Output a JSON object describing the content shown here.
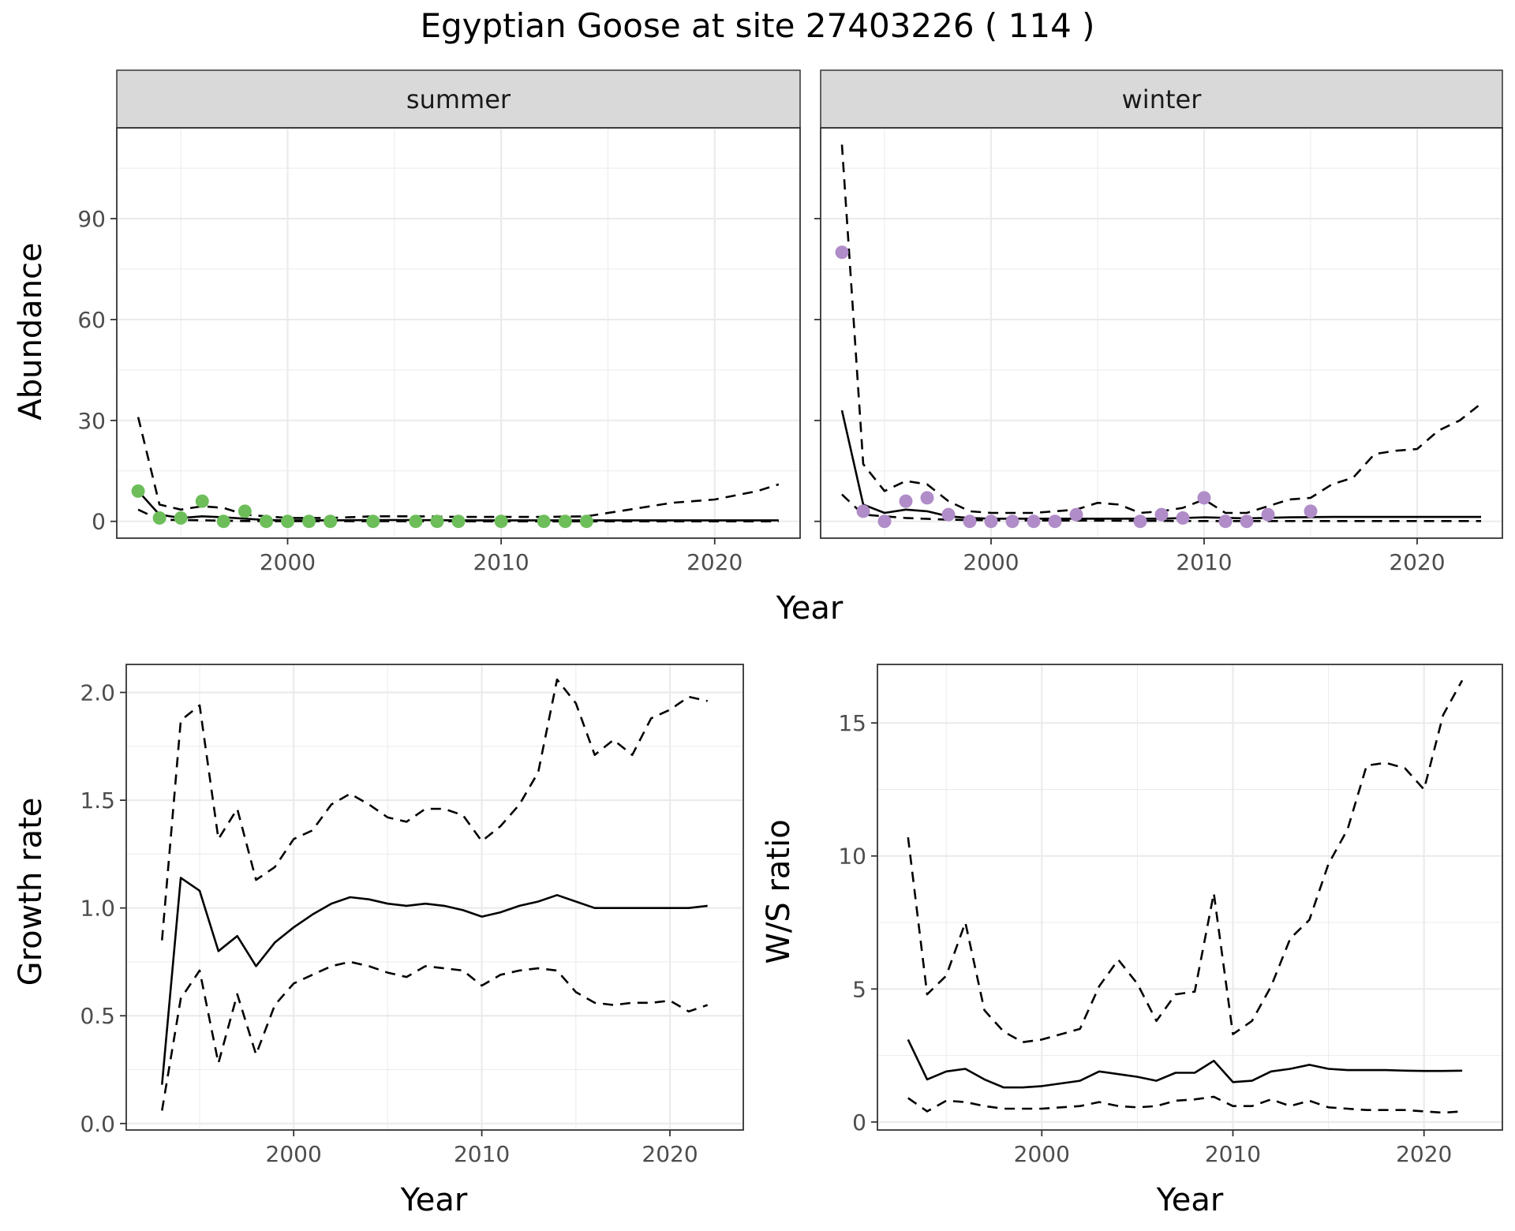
{
  "figure_title": "Egyptian Goose at site 27403226 ( 114 )",
  "colors": {
    "summer_points": "#6dbe5a",
    "winter_points": "#b08cc8",
    "strip_fill": "#d9d9d9",
    "grid": "#ebebeb",
    "line": "#000000"
  },
  "chart_data": [
    {
      "type": "line",
      "title": "Egyptian Goose at site 27403226 ( 114 )",
      "facet_labels": [
        "summer",
        "winter"
      ],
      "xlabel": "Year",
      "ylabel": "Abundance",
      "xlim": [
        1992,
        2024
      ],
      "ylim": [
        -5,
        117
      ],
      "x_ticks": [
        2000,
        2010,
        2020
      ],
      "y_ticks": [
        0,
        30,
        60,
        90
      ],
      "grid": true,
      "facets": [
        {
          "name": "summer",
          "points": {
            "x": [
              1993,
              1994,
              1995,
              1996,
              1997,
              1998,
              1999,
              2000,
              2001,
              2002,
              2004,
              2006,
              2007,
              2008,
              2010,
              2012,
              2013,
              2014
            ],
            "y": [
              9,
              1,
              1,
              6,
              0,
              3,
              0,
              0,
              0,
              0,
              0,
              0,
              0,
              0,
              0,
              0,
              0,
              0
            ]
          },
          "series": [
            {
              "style": "solid",
              "x": [
                1993,
                1994,
                1995,
                1996,
                1997,
                1998,
                1999,
                2000,
                2002,
                2004,
                2006,
                2008,
                2010,
                2012,
                2014,
                2016,
                2018,
                2020,
                2023
              ],
              "y": [
                9,
                2,
                1,
                1.5,
                1.2,
                0.8,
                0.4,
                0.3,
                0.3,
                0.4,
                0.4,
                0.3,
                0.3,
                0.3,
                0.3,
                0.3,
                0.3,
                0.3,
                0.3
              ]
            },
            {
              "style": "dashed",
              "x": [
                1993,
                1994,
                1995,
                1996,
                1997,
                1998,
                1999,
                2000,
                2002,
                2004,
                2006,
                2008,
                2010,
                2012,
                2014,
                2016,
                2018,
                2020,
                2022,
                2023
              ],
              "y": [
                31,
                5,
                3.5,
                4.5,
                4,
                2,
                1.5,
                1,
                1,
                1.5,
                1.5,
                1.3,
                1.3,
                1.3,
                1.5,
                3.5,
                5.5,
                6.5,
                9,
                11
              ]
            },
            {
              "style": "dashed",
              "x": [
                1993,
                1994,
                1996,
                1998,
                2000,
                2005,
                2010,
                2015,
                2020,
                2023
              ],
              "y": [
                3.5,
                0.5,
                0.3,
                0.1,
                0.05,
                0.05,
                0,
                0,
                0,
                0
              ]
            }
          ]
        },
        {
          "name": "winter",
          "points": {
            "x": [
              1993,
              1994,
              1995,
              1996,
              1997,
              1998,
              1999,
              2000,
              2001,
              2002,
              2003,
              2004,
              2007,
              2008,
              2009,
              2010,
              2011,
              2012,
              2013,
              2015
            ],
            "y": [
              80,
              3,
              0,
              6,
              7,
              2,
              0,
              0,
              0,
              0,
              0,
              2,
              0,
              2,
              1,
              7,
              0,
              0,
              2,
              3
            ]
          },
          "series": [
            {
              "style": "solid",
              "x": [
                1993,
                1994,
                1995,
                1996,
                1997,
                1998,
                1999,
                2000,
                2002,
                2004,
                2006,
                2008,
                2010,
                2012,
                2014,
                2016,
                2018,
                2020,
                2023
              ],
              "y": [
                33,
                5,
                2.5,
                3.5,
                3,
                1.5,
                1,
                0.8,
                0.8,
                0.8,
                0.8,
                0.8,
                1.2,
                0.9,
                1.2,
                1.3,
                1.3,
                1.3,
                1.3
              ]
            },
            {
              "style": "dashed",
              "x": [
                1993,
                1994,
                1995,
                1996,
                1997,
                1998,
                1999,
                2000,
                2002,
                2004,
                2005,
                2006,
                2007,
                2008,
                2009,
                2010,
                2011,
                2012,
                2013,
                2014,
                2015,
                2016,
                2017,
                2018,
                2019,
                2020,
                2021,
                2022,
                2023
              ],
              "y": [
                112,
                17,
                9,
                12,
                11,
                6,
                3,
                2.5,
                2.5,
                3.5,
                5.5,
                5,
                2.5,
                3,
                4,
                6.5,
                2.5,
                2.5,
                4.5,
                6.5,
                7,
                11,
                13,
                20,
                21,
                21.5,
                27,
                30,
                35
              ]
            },
            {
              "style": "dashed",
              "x": [
                1993,
                1994,
                1996,
                1998,
                2000,
                2005,
                2010,
                2015,
                2020,
                2023
              ],
              "y": [
                8,
                2,
                1,
                0.5,
                0.3,
                0.2,
                0.1,
                0.1,
                0.1,
                0.1
              ]
            }
          ]
        }
      ]
    },
    {
      "type": "line",
      "xlabel": "Year",
      "ylabel": "Growth rate",
      "xlim": [
        1991.1,
        2023.9
      ],
      "ylim": [
        -0.03,
        2.13
      ],
      "x_ticks": [
        2000,
        2010,
        2020
      ],
      "y_ticks": [
        0.0,
        0.5,
        1.0,
        1.5,
        2.0
      ],
      "y_tick_labels": [
        "0.0",
        "0.5",
        "1.0",
        "1.5",
        "2.0"
      ],
      "grid": true,
      "x": [
        1993,
        1994,
        1995,
        1996,
        1997,
        1998,
        1999,
        2000,
        2001,
        2002,
        2003,
        2004,
        2005,
        2006,
        2007,
        2008,
        2009,
        2010,
        2011,
        2012,
        2013,
        2014,
        2015,
        2016,
        2017,
        2018,
        2019,
        2020,
        2021,
        2022
      ],
      "series": [
        {
          "style": "solid",
          "values": [
            0.18,
            1.14,
            1.08,
            0.8,
            0.87,
            0.73,
            0.84,
            0.91,
            0.97,
            1.02,
            1.05,
            1.04,
            1.02,
            1.01,
            1.02,
            1.01,
            0.99,
            0.96,
            0.98,
            1.01,
            1.03,
            1.06,
            1.03,
            1.0,
            1.0,
            1.0,
            1.0,
            1.0,
            1.0,
            1.01
          ]
        },
        {
          "style": "dashed",
          "values": [
            0.85,
            1.87,
            1.94,
            1.32,
            1.46,
            1.13,
            1.19,
            1.32,
            1.36,
            1.48,
            1.53,
            1.48,
            1.42,
            1.4,
            1.46,
            1.46,
            1.43,
            1.31,
            1.38,
            1.48,
            1.63,
            2.06,
            1.95,
            1.71,
            1.78,
            1.71,
            1.88,
            1.92,
            1.98,
            1.96
          ]
        },
        {
          "style": "dashed",
          "values": [
            0.06,
            0.58,
            0.71,
            0.28,
            0.6,
            0.32,
            0.55,
            0.65,
            0.69,
            0.73,
            0.75,
            0.73,
            0.7,
            0.68,
            0.73,
            0.72,
            0.71,
            0.64,
            0.69,
            0.71,
            0.72,
            0.71,
            0.61,
            0.56,
            0.55,
            0.56,
            0.56,
            0.57,
            0.52,
            0.55
          ]
        }
      ]
    },
    {
      "type": "line",
      "xlabel": "Year",
      "ylabel": "W/S ratio",
      "xlim": [
        1991.4,
        2024.1
      ],
      "ylim": [
        -0.3,
        17.2
      ],
      "x_ticks": [
        2000,
        2010,
        2020
      ],
      "y_ticks": [
        0,
        5,
        10,
        15
      ],
      "grid": true,
      "x": [
        1993,
        1994,
        1995,
        1996,
        1997,
        1998,
        1999,
        2000,
        2001,
        2002,
        2003,
        2004,
        2005,
        2006,
        2007,
        2008,
        2009,
        2010,
        2011,
        2012,
        2013,
        2014,
        2015,
        2016,
        2017,
        2018,
        2019,
        2020,
        2021,
        2022
      ],
      "series": [
        {
          "style": "solid",
          "values": [
            3.1,
            1.6,
            1.9,
            2.0,
            1.6,
            1.3,
            1.3,
            1.35,
            1.45,
            1.55,
            1.9,
            1.8,
            1.7,
            1.55,
            1.85,
            1.85,
            2.3,
            1.5,
            1.55,
            1.9,
            2.0,
            2.15,
            2.0,
            1.95,
            1.95,
            1.95,
            1.93,
            1.92,
            1.92,
            1.93
          ]
        },
        {
          "style": "dashed",
          "values": [
            10.7,
            4.8,
            5.5,
            7.5,
            4.2,
            3.4,
            3.0,
            3.1,
            3.3,
            3.5,
            5.1,
            6.1,
            5.2,
            3.8,
            4.8,
            4.9,
            8.6,
            3.3,
            3.8,
            5.1,
            6.9,
            7.6,
            9.7,
            11.0,
            13.4,
            13.5,
            13.3,
            12.5,
            15.3,
            16.6
          ]
        },
        {
          "style": "dashed",
          "values": [
            0.9,
            0.4,
            0.8,
            0.75,
            0.6,
            0.5,
            0.5,
            0.5,
            0.55,
            0.6,
            0.75,
            0.6,
            0.55,
            0.6,
            0.8,
            0.85,
            0.95,
            0.6,
            0.6,
            0.85,
            0.6,
            0.8,
            0.55,
            0.5,
            0.45,
            0.45,
            0.45,
            0.4,
            0.35,
            0.4
          ]
        }
      ]
    }
  ]
}
